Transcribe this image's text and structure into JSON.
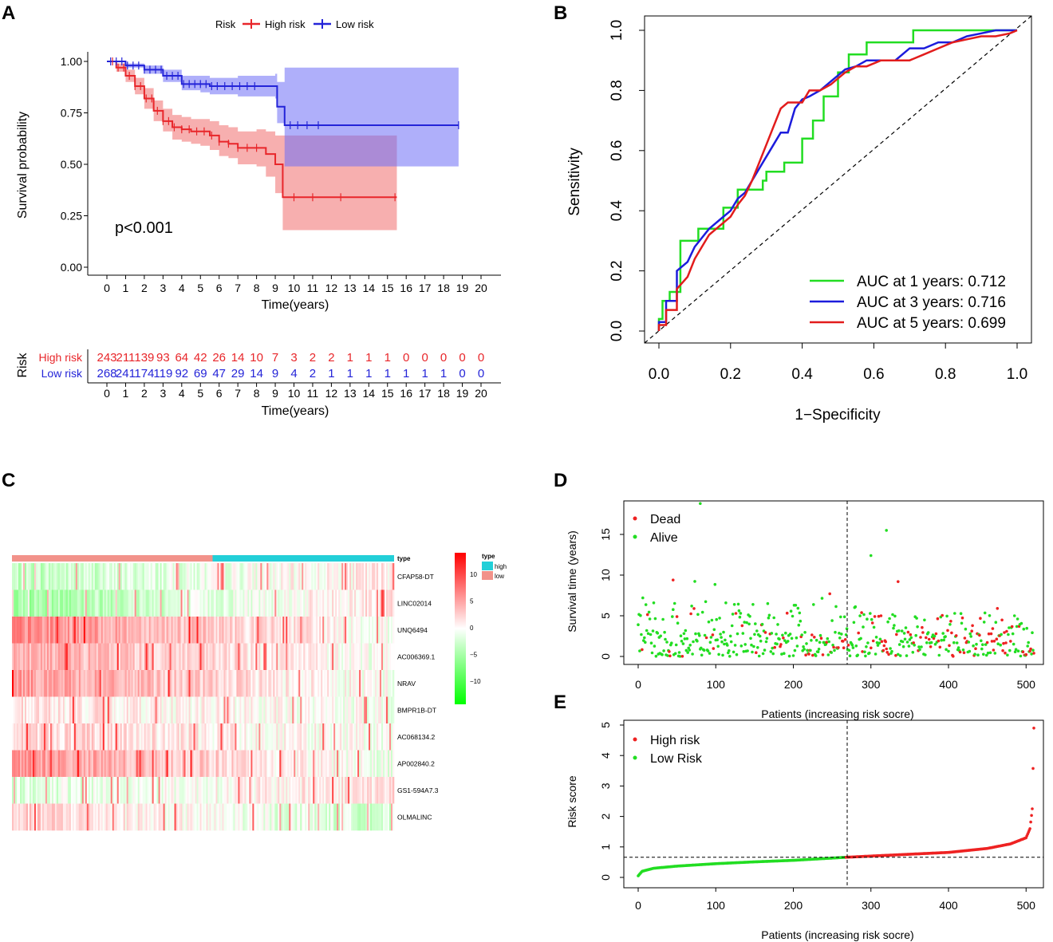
{
  "panel_labels": [
    "A",
    "B",
    "C",
    "D",
    "E"
  ],
  "chart_data": [
    {
      "panel": "A",
      "type": "line",
      "subtype": "kaplan-meier",
      "legend_title": "Risk",
      "legend": [
        "High risk",
        "Low risk"
      ],
      "xlabel": "Time(years)",
      "ylabel": "Survival probability",
      "xlim": [
        0,
        20
      ],
      "ylim": [
        0,
        1
      ],
      "xticks": [
        "0",
        "1",
        "2",
        "3",
        "4",
        "5",
        "6",
        "7",
        "8",
        "9",
        "10",
        "11",
        "12",
        "13",
        "14",
        "15",
        "16",
        "17",
        "18",
        "19",
        "20"
      ],
      "yticks": [
        "0.00",
        "0.25",
        "0.50",
        "0.75",
        "1.00"
      ],
      "annotation": "p<0.001",
      "colors": {
        "high": "#e8262a",
        "low": "#2424d8"
      },
      "series": [
        {
          "name": "High risk",
          "x": [
            0,
            0.5,
            1,
            1.5,
            2,
            2.5,
            3,
            3.5,
            4,
            4.5,
            5,
            5.5,
            6,
            6.5,
            7,
            7.5,
            8,
            8.5,
            9,
            9.3,
            9.4,
            10,
            12,
            15.5
          ],
          "y": [
            1,
            0.97,
            0.93,
            0.88,
            0.82,
            0.76,
            0.71,
            0.68,
            0.67,
            0.66,
            0.66,
            0.64,
            0.61,
            0.6,
            0.58,
            0.58,
            0.58,
            0.55,
            0.5,
            0.5,
            0.34,
            0.34,
            0.34,
            0.34
          ],
          "lower": [
            1,
            0.95,
            0.9,
            0.84,
            0.77,
            0.71,
            0.66,
            0.62,
            0.61,
            0.6,
            0.59,
            0.57,
            0.54,
            0.53,
            0.5,
            0.5,
            0.49,
            0.44,
            0.36,
            0.36,
            0.18,
            0.18,
            0.18,
            0.18
          ],
          "upper": [
            1,
            0.99,
            0.96,
            0.92,
            0.87,
            0.81,
            0.77,
            0.74,
            0.73,
            0.72,
            0.72,
            0.71,
            0.69,
            0.68,
            0.66,
            0.66,
            0.67,
            0.66,
            0.64,
            0.64,
            0.64,
            0.64,
            0.64,
            0.64
          ]
        },
        {
          "name": "Low risk",
          "x": [
            0,
            1,
            2,
            3,
            4,
            5,
            5.5,
            6,
            7,
            8,
            9,
            9.1,
            9.5,
            10,
            11,
            15,
            18.8
          ],
          "y": [
            1,
            0.98,
            0.96,
            0.93,
            0.89,
            0.89,
            0.88,
            0.88,
            0.88,
            0.88,
            0.88,
            0.78,
            0.69,
            0.69,
            0.69,
            0.69,
            0.69
          ],
          "lower": [
            1,
            0.97,
            0.94,
            0.9,
            0.86,
            0.85,
            0.84,
            0.84,
            0.83,
            0.83,
            0.82,
            0.7,
            0.49,
            0.49,
            0.49,
            0.49,
            0.49
          ],
          "upper": [
            1,
            0.99,
            0.98,
            0.96,
            0.93,
            0.93,
            0.92,
            0.92,
            0.93,
            0.93,
            0.94,
            0.9,
            0.97,
            0.97,
            0.97,
            0.97,
            0.97
          ]
        }
      ],
      "censor_high": [
        0.3,
        0.6,
        0.9,
        1.2,
        1.5,
        1.8,
        2.1,
        2.4,
        2.7,
        3.0,
        3.3,
        3.6,
        4.0,
        4.4,
        4.8,
        5.2,
        5.6,
        6.0,
        6.5,
        7.0,
        7.5,
        8.0,
        10.0,
        11.0,
        12.5,
        15.4
      ],
      "censor_low": [
        0.2,
        0.5,
        0.8,
        1.1,
        1.4,
        1.7,
        2.0,
        2.3,
        2.6,
        2.9,
        3.2,
        3.5,
        3.8,
        4.1,
        4.4,
        4.7,
        5.0,
        5.3,
        5.6,
        5.9,
        6.3,
        6.7,
        7.1,
        7.5,
        7.9,
        9.8,
        10.2,
        10.7,
        11.3,
        18.8
      ],
      "risk_table": {
        "ylabel": "Risk",
        "rows": [
          {
            "label": "High risk",
            "values": [
              "243",
              "211",
              "139",
              "93",
              "64",
              "42",
              "26",
              "14",
              "10",
              "7",
              "3",
              "2",
              "2",
              "1",
              "1",
              "1",
              "0",
              "0",
              "0",
              "0",
              "0"
            ]
          },
          {
            "label": "Low risk",
            "values": [
              "268",
              "241",
              "174",
              "119",
              "92",
              "69",
              "47",
              "29",
              "14",
              "9",
              "4",
              "2",
              "1",
              "1",
              "1",
              "1",
              "1",
              "1",
              "1",
              "0",
              "0"
            ]
          }
        ],
        "xlabel": "Time(years)"
      }
    },
    {
      "panel": "B",
      "type": "line",
      "subtype": "roc",
      "xlabel": "1−Specificity",
      "ylabel": "Sensitivity",
      "xlim": [
        0,
        1
      ],
      "ylim": [
        0,
        1
      ],
      "xticks": [
        "0.0",
        "0.2",
        "0.4",
        "0.6",
        "0.8",
        "1.0"
      ],
      "yticks": [
        "0.0",
        "0.2",
        "0.4",
        "0.6",
        "0.8",
        "1.0"
      ],
      "series": [
        {
          "name": "AUC at 1 years: 0.712",
          "color": "#22dd22",
          "x": [
            0,
            0,
            0.01,
            0.01,
            0.03,
            0.03,
            0.06,
            0.06,
            0.11,
            0.11,
            0.18,
            0.18,
            0.22,
            0.22,
            0.29,
            0.29,
            0.3,
            0.3,
            0.35,
            0.35,
            0.4,
            0.4,
            0.43,
            0.43,
            0.46,
            0.46,
            0.5,
            0.5,
            0.53,
            0.53,
            0.58,
            0.58,
            0.71,
            0.71,
            1
          ],
          "y": [
            0,
            0.04,
            0.04,
            0.1,
            0.1,
            0.13,
            0.13,
            0.3,
            0.3,
            0.34,
            0.34,
            0.41,
            0.41,
            0.47,
            0.47,
            0.5,
            0.5,
            0.53,
            0.53,
            0.56,
            0.56,
            0.64,
            0.64,
            0.7,
            0.7,
            0.78,
            0.78,
            0.86,
            0.86,
            0.92,
            0.92,
            0.96,
            0.96,
            1,
            1
          ]
        },
        {
          "name": "AUC at 3 years: 0.716",
          "color": "#1c1cdc",
          "x": [
            0,
            0,
            0.02,
            0.02,
            0.05,
            0.05,
            0.08,
            0.1,
            0.12,
            0.14,
            0.17,
            0.2,
            0.22,
            0.24,
            0.26,
            0.28,
            0.3,
            0.32,
            0.34,
            0.36,
            0.38,
            0.4,
            0.42,
            0.45,
            0.48,
            0.5,
            0.52,
            0.55,
            0.58,
            0.62,
            0.66,
            0.7,
            0.74,
            0.78,
            0.82,
            0.86,
            0.9,
            0.94,
            0.98,
            1
          ],
          "y": [
            0,
            0.03,
            0.03,
            0.1,
            0.1,
            0.2,
            0.23,
            0.28,
            0.31,
            0.34,
            0.37,
            0.4,
            0.44,
            0.46,
            0.5,
            0.54,
            0.58,
            0.62,
            0.66,
            0.66,
            0.74,
            0.77,
            0.78,
            0.8,
            0.83,
            0.85,
            0.87,
            0.88,
            0.9,
            0.9,
            0.9,
            0.94,
            0.94,
            0.96,
            0.96,
            0.98,
            0.99,
            1,
            1,
            1
          ]
        },
        {
          "name": "AUC at 5 years: 0.699",
          "color": "#e21c1c",
          "x": [
            0,
            0,
            0.02,
            0.02,
            0.05,
            0.05,
            0.08,
            0.1,
            0.12,
            0.14,
            0.17,
            0.2,
            0.22,
            0.24,
            0.26,
            0.28,
            0.3,
            0.32,
            0.34,
            0.36,
            0.38,
            0.4,
            0.42,
            0.45,
            0.48,
            0.5,
            0.52,
            0.55,
            0.58,
            0.62,
            0.66,
            0.7,
            0.74,
            0.78,
            0.82,
            0.86,
            0.9,
            0.94,
            0.98,
            1
          ],
          "y": [
            0,
            0.02,
            0.02,
            0.07,
            0.07,
            0.14,
            0.18,
            0.24,
            0.28,
            0.32,
            0.35,
            0.38,
            0.42,
            0.45,
            0.5,
            0.56,
            0.62,
            0.68,
            0.74,
            0.76,
            0.76,
            0.76,
            0.8,
            0.8,
            0.82,
            0.84,
            0.86,
            0.88,
            0.88,
            0.9,
            0.9,
            0.9,
            0.92,
            0.94,
            0.96,
            0.97,
            0.98,
            0.98,
            0.99,
            1
          ]
        }
      ]
    },
    {
      "panel": "C",
      "type": "heatmap",
      "genes": [
        "CFAP58-DT",
        "LINC02014",
        "UNQ6494",
        "AC006369.1",
        "NRAV",
        "BMPR1B-DT",
        "AC068134.2",
        "AP002840.2",
        "GS1-594A7.3",
        "OLMALINC"
      ],
      "annotation_title": "type",
      "groups": [
        {
          "name": "low",
          "count": 268,
          "color": "#f2928a"
        },
        {
          "name": "high",
          "count": 243,
          "color": "#22cfd8"
        }
      ],
      "legend_type": {
        "title": "type",
        "items": [
          "high",
          "low"
        ]
      },
      "colorbar_ticks": [
        "10",
        "5",
        "0",
        "−5",
        "−10"
      ],
      "color_high": "#ff0000",
      "color_mid": "#ffffff",
      "color_low": "#00ff00"
    },
    {
      "panel": "D",
      "type": "scatter",
      "xlabel": "Patients (increasing risk socre)",
      "ylabel": "Survival time (years)",
      "xticks": [
        "0",
        "100",
        "200",
        "300",
        "400",
        "500"
      ],
      "yticks": [
        "0",
        "5",
        "10",
        "15"
      ],
      "xlim": [
        0,
        511
      ],
      "ylim": [
        0,
        19
      ],
      "cutoff_index": 268,
      "legend": [
        {
          "label": "Dead",
          "color": "#ee2222"
        },
        {
          "label": "Alive",
          "color": "#22dd22"
        }
      ],
      "n_patients": 511,
      "notable_points": [
        {
          "x": 80,
          "y": 18.8,
          "status": "Alive"
        },
        {
          "x": 320,
          "y": 15.5,
          "status": "Alive"
        },
        {
          "x": 300,
          "y": 12.4,
          "status": "Alive"
        },
        {
          "x": 45,
          "y": 9.4,
          "status": "Dead"
        },
        {
          "x": 335,
          "y": 9.2,
          "status": "Dead"
        }
      ]
    },
    {
      "panel": "E",
      "type": "scatter",
      "xlabel": "Patients (increasing risk socre)",
      "ylabel": "Risk score",
      "xticks": [
        "0",
        "100",
        "200",
        "300",
        "400",
        "500"
      ],
      "yticks": [
        "0",
        "1",
        "2",
        "3",
        "4",
        "5"
      ],
      "xlim": [
        0,
        511
      ],
      "ylim": [
        0,
        5
      ],
      "cutoff_index": 268,
      "cutoff_score": 0.66,
      "legend": [
        {
          "label": "High risk",
          "color": "#ee2222"
        },
        {
          "label": "Low Risk",
          "color": "#22dd22"
        }
      ],
      "curve": {
        "x": [
          0,
          5,
          20,
          50,
          100,
          150,
          200,
          268,
          300,
          350,
          400,
          450,
          480,
          500,
          505,
          508,
          510
        ],
        "y": [
          0.05,
          0.2,
          0.3,
          0.37,
          0.45,
          0.51,
          0.56,
          0.66,
          0.7,
          0.76,
          0.82,
          0.95,
          1.1,
          1.3,
          1.6,
          2.25,
          4.9
        ]
      }
    }
  ]
}
